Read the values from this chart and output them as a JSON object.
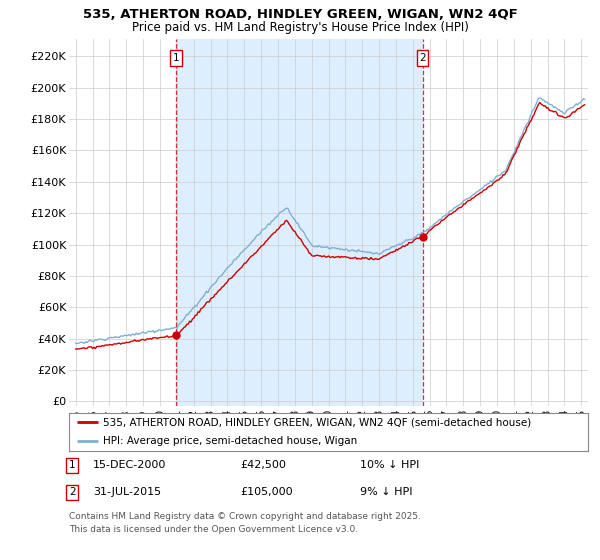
{
  "title1": "535, ATHERTON ROAD, HINDLEY GREEN, WIGAN, WN2 4QF",
  "title2": "Price paid vs. HM Land Registry's House Price Index (HPI)",
  "yticks": [
    0,
    20000,
    40000,
    60000,
    80000,
    100000,
    120000,
    140000,
    160000,
    180000,
    200000,
    220000
  ],
  "ytick_labels": [
    "£0",
    "£20K",
    "£40K",
    "£60K",
    "£80K",
    "£100K",
    "£120K",
    "£140K",
    "£160K",
    "£180K",
    "£200K",
    "£220K"
  ],
  "xlim_start": 1994.6,
  "xlim_end": 2025.4,
  "ylim_min": -3000,
  "ylim_max": 231000,
  "sale1_date": 2000.96,
  "sale1_price": 42500,
  "sale1_label": "1",
  "sale2_date": 2015.58,
  "sale2_price": 105000,
  "sale2_label": "2",
  "property_line_color": "#cc0000",
  "hpi_line_color": "#7eb0d5",
  "shade_color": "#ddeeff",
  "background_color": "#ffffff",
  "grid_color": "#cccccc",
  "legend_label_property": "535, ATHERTON ROAD, HINDLEY GREEN, WIGAN, WN2 4QF (semi-detached house)",
  "legend_label_hpi": "HPI: Average price, semi-detached house, Wigan",
  "footer_text": "Contains HM Land Registry data © Crown copyright and database right 2025.\nThis data is licensed under the Open Government Licence v3.0.",
  "xticks": [
    1995,
    1996,
    1997,
    1998,
    1999,
    2000,
    2001,
    2002,
    2003,
    2004,
    2005,
    2006,
    2007,
    2008,
    2009,
    2010,
    2011,
    2012,
    2013,
    2014,
    2015,
    2016,
    2017,
    2018,
    2019,
    2020,
    2021,
    2022,
    2023,
    2024,
    2025
  ]
}
